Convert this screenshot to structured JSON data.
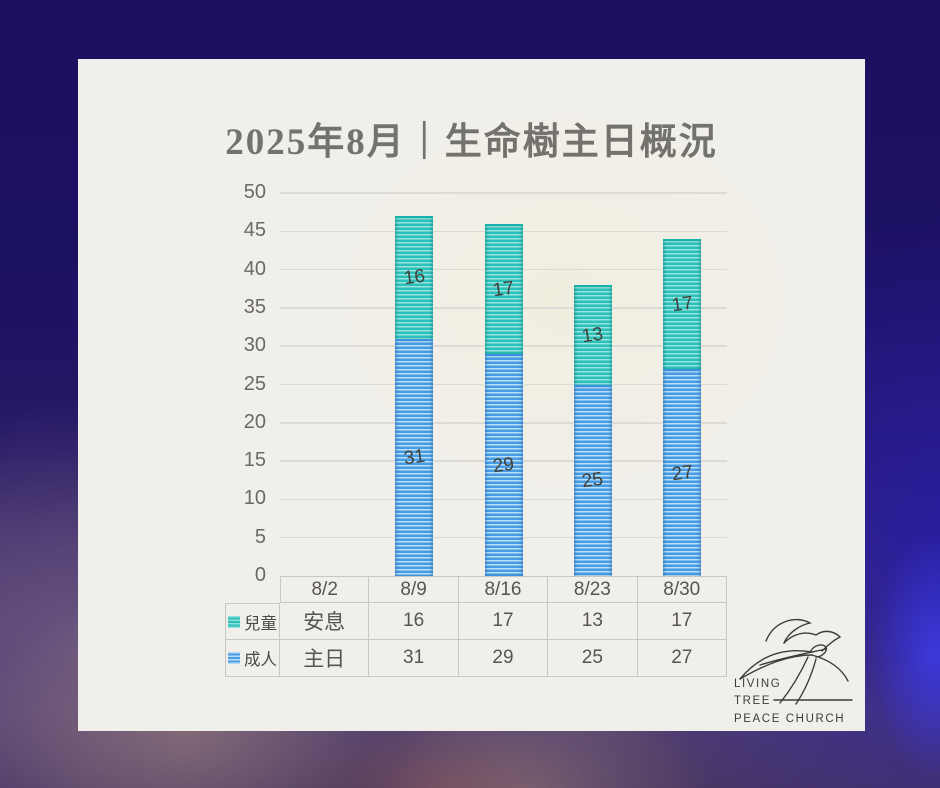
{
  "title": "2025年8月｜生命樹主日概況",
  "chart_data": {
    "type": "bar",
    "stacked": true,
    "title": "2025年8月｜生命樹主日概況",
    "categories": [
      "8/2",
      "8/9",
      "8/16",
      "8/23",
      "8/30"
    ],
    "series": [
      {
        "name": "兒童",
        "color": "#2cc0ba",
        "values": [
          null,
          16,
          17,
          13,
          17
        ]
      },
      {
        "name": "成人",
        "color": "#489ce4",
        "values": [
          null,
          31,
          29,
          25,
          27
        ]
      }
    ],
    "ylim": [
      0,
      50
    ],
    "yticks": [
      0,
      5,
      10,
      15,
      20,
      25,
      30,
      35,
      40,
      45,
      50
    ],
    "grid": true,
    "legend_position": "table-left",
    "bar_labels_shown": true
  },
  "table": {
    "columns": [
      "8/2",
      "8/9",
      "8/16",
      "8/23",
      "8/30"
    ],
    "rows": [
      {
        "legend": "兒童",
        "icon": "teal-striped-square-icon",
        "cells": [
          "安息",
          "16",
          "17",
          "13",
          "17"
        ]
      },
      {
        "legend": "成人",
        "icon": "blue-striped-square-icon",
        "cells": [
          "主日",
          "31",
          "29",
          "25",
          "27"
        ]
      }
    ]
  },
  "logo": {
    "lines": [
      "LIVING",
      "TREE",
      "PEACE CHURCH"
    ]
  },
  "colors": {
    "children_bar": "#2cc0ba",
    "adults_bar": "#489ce4",
    "card_background": "#f1efe9",
    "title_text": "#74726c",
    "background_navy": "#1d1263",
    "background_purple": "#54406f",
    "background_blue": "#261ca5"
  }
}
